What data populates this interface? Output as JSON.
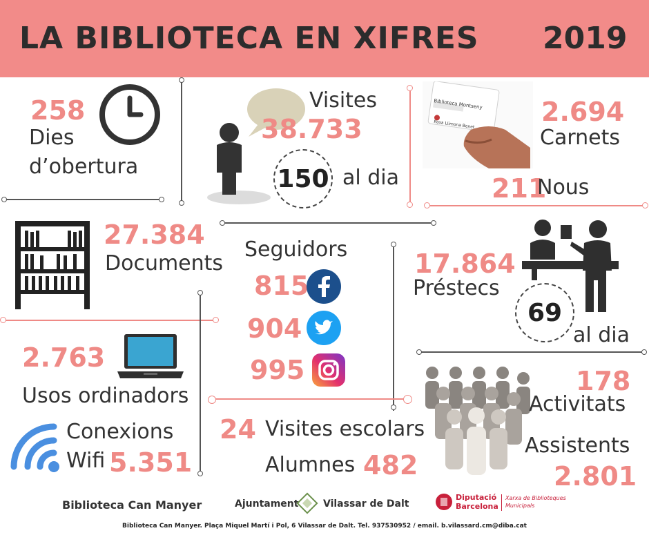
{
  "header": {
    "title": "LA BIBLIOTECA EN XIFRES",
    "year": "2019"
  },
  "opening": {
    "value": "258",
    "label_1": "Dies",
    "label_2": "d’obertura"
  },
  "visits": {
    "label": "Visites",
    "value": "38.733",
    "per_day": "150",
    "per_day_label": "al dia"
  },
  "cards": {
    "value": "2.694",
    "label": "Carnets",
    "new_value": "211",
    "new_label": "Nous",
    "card_title": "Biblioteca Montseny",
    "card_name": "Rosa Llimona Benet"
  },
  "documents": {
    "value": "27.384",
    "label": "Documents"
  },
  "followers": {
    "label": "Seguidors",
    "facebook": "815",
    "twitter": "904",
    "instagram": "995"
  },
  "loans": {
    "value": "17.864",
    "label": "Préstecs",
    "per_day": "69",
    "per_day_label": "al dia"
  },
  "computers": {
    "value": "2.763",
    "label": "Usos ordinadors"
  },
  "wifi": {
    "label_1": "Conexions",
    "label_2": "Wifi",
    "value": "5.351"
  },
  "school": {
    "value": "24",
    "label": "Visites escolars",
    "students_label": "Alumnes",
    "students_value": "482"
  },
  "activities": {
    "value": "178",
    "label": "Activitats",
    "attendees_label": "Assistents",
    "attendees_value": "2.801"
  },
  "footer": {
    "library": "Biblioteca Can Manyer",
    "council_1": "Ajuntament",
    "council_2": "Vilassar de Dalt",
    "dipu_1": "Diputació",
    "dipu_2": "Barcelona",
    "xarxa_1": "Xarxa de Biblioteques",
    "xarxa_2": "Municipals",
    "address": "Biblioteca Can Manyer. Plaça Miquel Martí i Pol, 6 Vilassar de Dalt. Tel. 937530952 / email. b.vilassard.cm@diba.cat"
  },
  "colors": {
    "header_bg": "#f28b89",
    "accent": "#ef8a86",
    "dark": "#2f2f2f",
    "facebook": "#1c4f8c",
    "twitter": "#1da1f2",
    "wifi": "#4a8fe0"
  }
}
